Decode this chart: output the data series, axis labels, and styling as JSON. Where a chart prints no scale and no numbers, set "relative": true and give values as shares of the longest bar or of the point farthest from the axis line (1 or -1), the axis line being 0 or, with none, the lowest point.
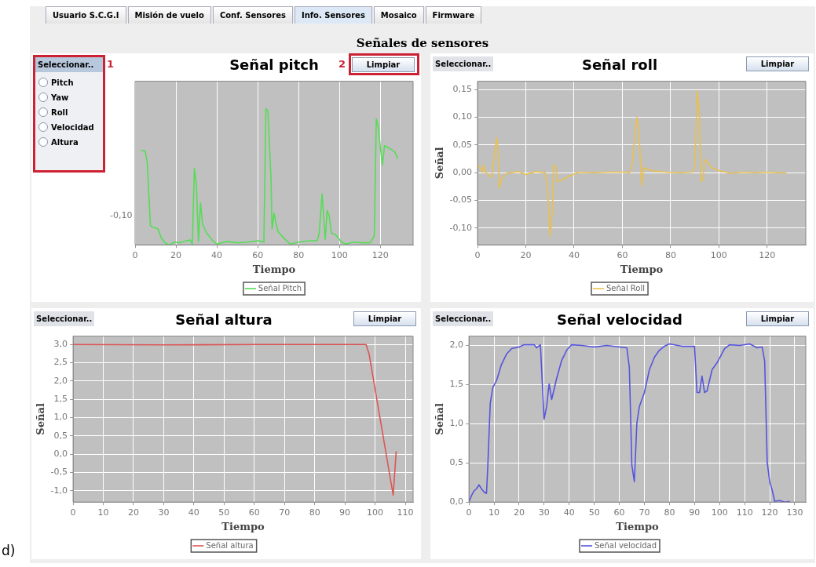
{
  "chart_data": [
    {
      "type": "other",
      "annotations": [
        "Usuario S.C.G.I",
        "Misión de vuelo",
        "Conf. Sensores",
        "Info. Sensores",
        "Mosaico",
        "Firmware",
        "Señales de sensores",
        "d)"
      ]
    },
    {
      "type": "line",
      "title": "Señal pitch",
      "xlabel": "Tiempo",
      "annotations": [
        "Seleccionar..",
        "Limpiar",
        "Pitch",
        "Yaw",
        "Roll",
        "Velocidad",
        "Altura",
        "1",
        "2",
        "-0,10"
      ],
      "relative": true,
      "xlim": [
        0,
        136
      ],
      "xticks": [
        0,
        20,
        40,
        60,
        80,
        100,
        120
      ],
      "grid": "x",
      "legend": "bottom",
      "marker": "none",
      "line_style": "solid",
      "series": [
        {
          "name": "Señal Pitch",
          "color": "#55dd55",
          "x": [
            3,
            5,
            6,
            7.5,
            9,
            11,
            13,
            15,
            17,
            19,
            22,
            25,
            27,
            28,
            29,
            30,
            31,
            32,
            33,
            35,
            38,
            40,
            45,
            50,
            55,
            60,
            62,
            63,
            64,
            65,
            66.5,
            67,
            68,
            69,
            70,
            73,
            76,
            80,
            85,
            89,
            90,
            91.5,
            93,
            94,
            95,
            96,
            98,
            101,
            103,
            107,
            111,
            115,
            116,
            117,
            118,
            119,
            120,
            121,
            122,
            124,
            126,
            127,
            128,
            128.5
          ],
          "values": [
            0.692,
            0.687,
            0.596,
            0.141,
            0.126,
            0.121,
            0.045,
            0.01,
            0,
            0.02,
            0.015,
            0.03,
            0.035,
            0.005,
            0.561,
            0.439,
            0.025,
            0.308,
            0.152,
            0.086,
            0.03,
            0.005,
            0.025,
            0.015,
            0.02,
            0.03,
            0.025,
            0.02,
            1,
            0.98,
            0.48,
            0.116,
            0.232,
            0.152,
            0.096,
            0.045,
            0.005,
            0.02,
            0.03,
            0.03,
            0.076,
            0.374,
            0.04,
            0.253,
            0.212,
            0.086,
            0.076,
            0.02,
            0.005,
            0.02,
            0.015,
            0.015,
            0.04,
            0.066,
            0.924,
            0.864,
            0.712,
            0.586,
            0.727,
            0.712,
            0.692,
            0.682,
            0.652,
            0.631
          ]
        }
      ]
    },
    {
      "type": "line",
      "title": "Señal roll",
      "xlabel": "Tiempo",
      "ylabel": "Señal",
      "annotations": [
        "Seleccionar..",
        "Limpiar"
      ],
      "xlim": [
        0,
        136
      ],
      "xticks": [
        0,
        20,
        40,
        60,
        80,
        100,
        120
      ],
      "ylim": [
        -0.13,
        0.165
      ],
      "yticks": [
        {
          "value": -0.1,
          "label": "-0,10"
        },
        {
          "value": -0.05,
          "label": "-0,05"
        },
        {
          "value": 0,
          "label": "0,00"
        },
        {
          "value": 0.05,
          "label": "0,05"
        },
        {
          "value": 0.1,
          "label": "0,10"
        },
        {
          "value": 0.15,
          "label": "0,15"
        }
      ],
      "grid": true,
      "legend": "bottom",
      "marker": "none",
      "line_style": "solid",
      "series": [
        {
          "name": "Señal Roll",
          "color": "#e8c050",
          "x": [
            0,
            1,
            2,
            2.5,
            3.5,
            5,
            6,
            7,
            8,
            8.5,
            9,
            10,
            12,
            17,
            20,
            24,
            28,
            29,
            30,
            31,
            31.5,
            32.5,
            33,
            35,
            38,
            42,
            48,
            54,
            60,
            63,
            64,
            65,
            66,
            67,
            68,
            69,
            72,
            78,
            84,
            89,
            90,
            91,
            92,
            92.5,
            93.5,
            94,
            95,
            97,
            100,
            105,
            110,
            115,
            120,
            125,
            128
          ],
          "values": [
            0.014,
            0.009,
            0.001,
            0.014,
            0.0,
            -0.006,
            -0.008,
            0.034,
            0.063,
            0.04,
            -0.028,
            -0.011,
            -0.001,
            0.002,
            -0.003,
            0.002,
            0.0,
            -0.026,
            -0.115,
            -0.07,
            0.014,
            0.009,
            -0.016,
            -0.013,
            -0.006,
            0.001,
            0.0,
            0.001,
            0.001,
            0.0,
            0.014,
            0.058,
            0.1,
            0.063,
            -0.023,
            0.009,
            0.004,
            0.001,
            0.0,
            0.001,
            0.009,
            0.148,
            0.103,
            -0.016,
            -0.011,
            0.024,
            0.021,
            0.009,
            0.004,
            -0.001,
            0.001,
            0.0,
            0.001,
            0.0,
            -0.001
          ]
        }
      ]
    },
    {
      "type": "line",
      "title": "Señal altura",
      "xlabel": "Tiempo",
      "ylabel": "Señal",
      "annotations": [
        "Seleccionar..",
        "Limpiar"
      ],
      "xlim": [
        0,
        112.6
      ],
      "xticks": [
        0,
        10,
        20,
        30,
        40,
        50,
        60,
        70,
        80,
        90,
        100,
        110
      ],
      "ylim": [
        -1.31,
        3.23
      ],
      "yticks": [
        {
          "value": -1,
          "label": "-1,0"
        },
        {
          "value": -0.5,
          "label": "-0,5"
        },
        {
          "value": 0,
          "label": "0,0"
        },
        {
          "value": 0.5,
          "label": "0,5"
        },
        {
          "value": 1,
          "label": "1,0"
        },
        {
          "value": 1.5,
          "label": "1,5"
        },
        {
          "value": 2,
          "label": "2,0"
        },
        {
          "value": 2.5,
          "label": "2,5"
        },
        {
          "value": 3,
          "label": "3,0"
        }
      ],
      "grid": true,
      "legend": "bottom",
      "marker": "none",
      "line_style": "solid",
      "series": [
        {
          "name": "Señal altura",
          "color": "#dd5555",
          "x": [
            0,
            30,
            60,
            97,
            98,
            106,
            107
          ],
          "values": [
            3.0,
            2.99,
            3.0,
            3.0,
            2.75,
            -1.12,
            0.08
          ]
        }
      ]
    },
    {
      "type": "line",
      "title": "Señal velocidad",
      "xlabel": "Tiempo",
      "ylabel": "Señal",
      "annotations": [
        "Seleccionar..",
        "Limpiar"
      ],
      "xlim": [
        0,
        134.4
      ],
      "xticks": [
        0,
        10,
        20,
        30,
        40,
        50,
        60,
        70,
        80,
        90,
        100,
        110,
        120,
        130
      ],
      "ylim": [
        0,
        2.12
      ],
      "yticks": [
        {
          "value": 0,
          "label": "0,0"
        },
        {
          "value": 0.5,
          "label": "0,5"
        },
        {
          "value": 1,
          "label": "1,0"
        },
        {
          "value": 1.5,
          "label": "1,5"
        },
        {
          "value": 2,
          "label": "2,0"
        }
      ],
      "grid": true,
      "legend": "bottom",
      "marker": "none",
      "line_style": "solid",
      "series": [
        {
          "name": "Señal velocidad",
          "color": "#5555dd",
          "x": [
            0,
            1,
            2,
            3,
            4,
            5,
            6,
            7,
            7.5,
            8.5,
            9.5,
            11,
            13,
            15,
            17,
            20,
            22,
            26,
            27,
            28.5,
            30,
            31,
            32,
            33,
            35,
            37,
            39,
            41,
            45,
            50,
            55,
            60,
            63,
            64,
            65,
            66,
            67,
            68,
            70,
            72,
            74,
            76,
            78,
            80,
            85,
            90,
            91,
            92,
            93,
            94,
            95,
            97,
            99,
            102,
            104,
            108,
            112,
            115,
            117,
            118,
            119,
            120,
            121,
            122,
            124,
            126,
            128
          ],
          "values": [
            0.0,
            0.08,
            0.14,
            0.17,
            0.22,
            0.17,
            0.13,
            0.11,
            0.44,
            1.26,
            1.46,
            1.55,
            1.76,
            1.89,
            1.96,
            1.98,
            2.01,
            2.01,
            1.97,
            2.01,
            1.06,
            1.22,
            1.51,
            1.31,
            1.58,
            1.81,
            1.94,
            2.01,
            2.0,
            1.98,
            2.0,
            1.98,
            1.97,
            1.72,
            0.47,
            0.26,
            1.01,
            1.22,
            1.4,
            1.69,
            1.85,
            1.94,
            1.99,
            2.02,
            1.99,
            1.99,
            1.4,
            1.4,
            1.61,
            1.4,
            1.42,
            1.69,
            1.78,
            1.96,
            2.01,
            2.0,
            2.02,
            1.97,
            1.98,
            1.8,
            0.51,
            0.26,
            0.15,
            0.01,
            0.02,
            0.0,
            0.01
          ]
        }
      ]
    }
  ]
}
